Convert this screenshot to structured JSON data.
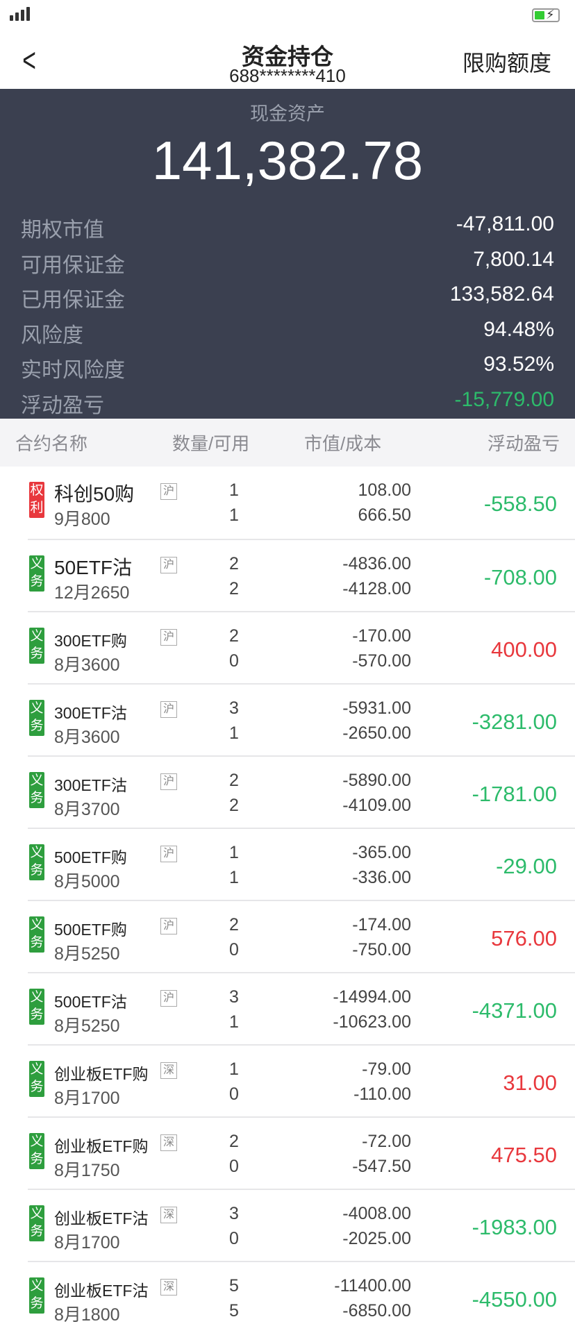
{
  "colors": {
    "panel": "#3b4050",
    "loss": "#2dbb6b",
    "profit": "#e8383d",
    "right_tag": "#e8383d",
    "duty_tag": "#2e9e3e"
  },
  "nav": {
    "title": "资金持仓",
    "account": "688********410",
    "right_button": "限购额度",
    "back_icon": "chevron-left-icon"
  },
  "summary": {
    "cash_label": "现金资产",
    "cash_value": "141,382.78",
    "items": [
      {
        "label": "期权市值",
        "value": "-47,811.00",
        "color": "white"
      },
      {
        "label": "可用保证金",
        "value": "7,800.14",
        "color": "white"
      },
      {
        "label": "已用保证金",
        "value": "133,582.64",
        "color": "white"
      },
      {
        "label": "风险度",
        "value": "94.48%",
        "color": "white"
      },
      {
        "label": "实时风险度",
        "value": "93.52%",
        "color": "white"
      },
      {
        "label": "浮动盈亏",
        "value": "-15,779.00",
        "color": "green"
      }
    ]
  },
  "table": {
    "headers": [
      "合约名称",
      "数量/可用",
      "市值/成本",
      "浮动盈亏"
    ],
    "rows": [
      {
        "tag": "权利",
        "type": "right",
        "name": "科创50购",
        "exchange": "沪",
        "sub": "9月800",
        "qty": "1",
        "avail": "1",
        "mv": "108.00",
        "cost": "666.50",
        "pl": "-558.50"
      },
      {
        "tag": "义务",
        "type": "duty",
        "name": "50ETF沽",
        "exchange": "沪",
        "sub": "12月2650",
        "qty": "2",
        "avail": "2",
        "mv": "-4836.00",
        "cost": "-4128.00",
        "pl": "-708.00"
      },
      {
        "tag": "义务",
        "type": "duty",
        "name": "300ETF购",
        "exchange": "沪",
        "sub": "8月3600",
        "qty": "2",
        "avail": "0",
        "mv": "-170.00",
        "cost": "-570.00",
        "pl": "400.00"
      },
      {
        "tag": "义务",
        "type": "duty",
        "name": "300ETF沽",
        "exchange": "沪",
        "sub": "8月3600",
        "qty": "3",
        "avail": "1",
        "mv": "-5931.00",
        "cost": "-2650.00",
        "pl": "-3281.00"
      },
      {
        "tag": "义务",
        "type": "duty",
        "name": "300ETF沽",
        "exchange": "沪",
        "sub": "8月3700",
        "qty": "2",
        "avail": "2",
        "mv": "-5890.00",
        "cost": "-4109.00",
        "pl": "-1781.00"
      },
      {
        "tag": "义务",
        "type": "duty",
        "name": "500ETF购",
        "exchange": "沪",
        "sub": "8月5000",
        "qty": "1",
        "avail": "1",
        "mv": "-365.00",
        "cost": "-336.00",
        "pl": "-29.00"
      },
      {
        "tag": "义务",
        "type": "duty",
        "name": "500ETF购",
        "exchange": "沪",
        "sub": "8月5250",
        "qty": "2",
        "avail": "0",
        "mv": "-174.00",
        "cost": "-750.00",
        "pl": "576.00"
      },
      {
        "tag": "义务",
        "type": "duty",
        "name": "500ETF沽",
        "exchange": "沪",
        "sub": "8月5250",
        "qty": "3",
        "avail": "1",
        "mv": "-14994.00",
        "cost": "-10623.00",
        "pl": "-4371.00"
      },
      {
        "tag": "义务",
        "type": "duty",
        "name": "创业板ETF购",
        "exchange": "深",
        "sub": "8月1700",
        "qty": "1",
        "avail": "0",
        "mv": "-79.00",
        "cost": "-110.00",
        "pl": "31.00"
      },
      {
        "tag": "义务",
        "type": "duty",
        "name": "创业板ETF购",
        "exchange": "深",
        "sub": "8月1750",
        "qty": "2",
        "avail": "0",
        "mv": "-72.00",
        "cost": "-547.50",
        "pl": "475.50"
      },
      {
        "tag": "义务",
        "type": "duty",
        "name": "创业板ETF沽",
        "exchange": "深",
        "sub": "8月1700",
        "qty": "3",
        "avail": "0",
        "mv": "-4008.00",
        "cost": "-2025.00",
        "pl": "-1983.00"
      },
      {
        "tag": "义务",
        "type": "duty",
        "name": "创业板ETF沽",
        "exchange": "深",
        "sub": "8月1800",
        "qty": "5",
        "avail": "5",
        "mv": "-11400.00",
        "cost": "-6850.00",
        "pl": "-4550.00"
      }
    ]
  }
}
